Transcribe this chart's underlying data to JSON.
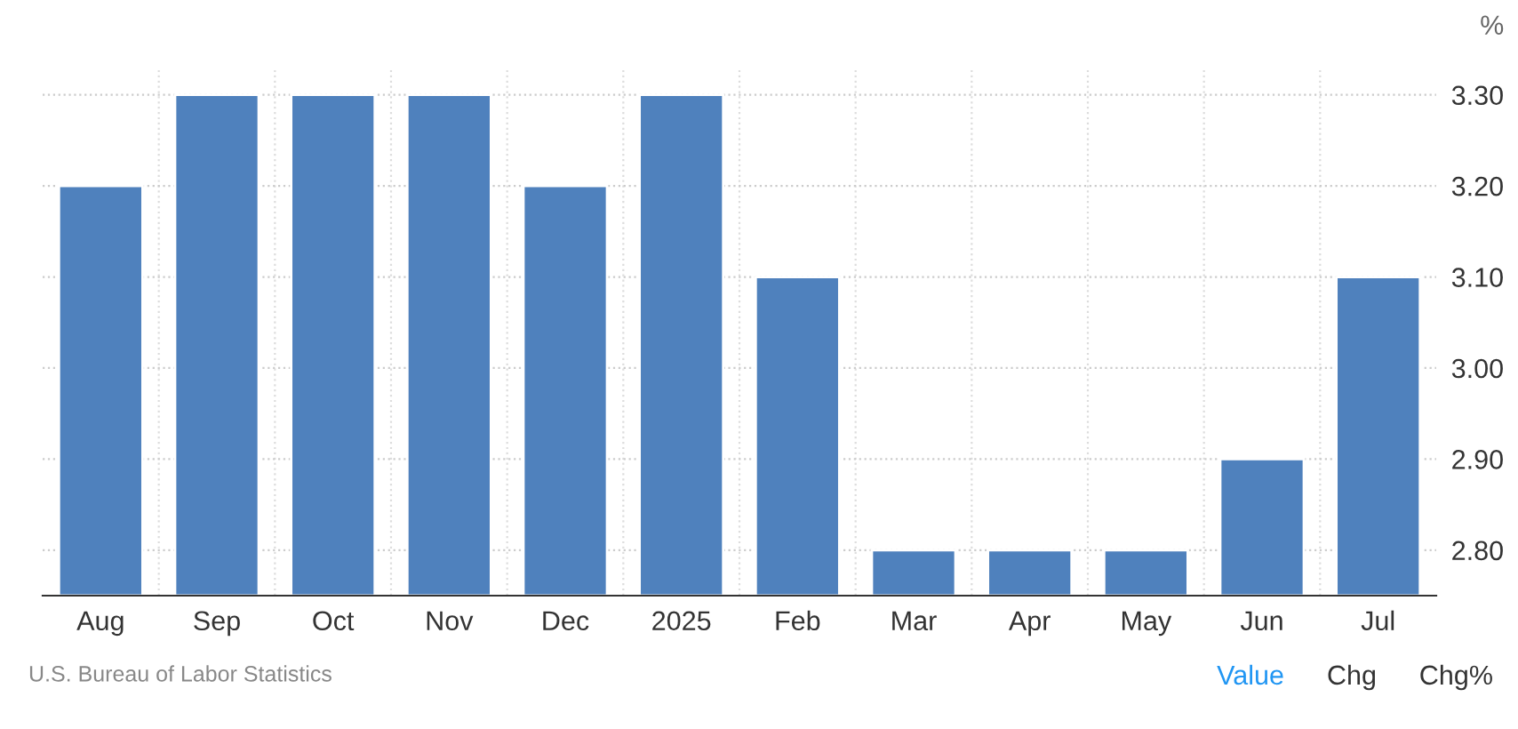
{
  "chart_data": {
    "type": "bar",
    "categories": [
      "Aug",
      "Sep",
      "Oct",
      "Nov",
      "Dec",
      "2025",
      "Feb",
      "Mar",
      "Apr",
      "May",
      "Jun",
      "Jul"
    ],
    "values": [
      3.2,
      3.3,
      3.3,
      3.3,
      3.2,
      3.3,
      3.1,
      2.8,
      2.8,
      2.8,
      2.9,
      3.1
    ],
    "color": "#4f81bd",
    "ylabel": "%",
    "ylim": [
      2.75,
      3.33
    ],
    "yticks": [
      {
        "value": 2.8,
        "label": "2.80"
      },
      {
        "value": 2.9,
        "label": "2.90"
      },
      {
        "value": 3.0,
        "label": "3.00"
      },
      {
        "value": 3.1,
        "label": "3.10"
      },
      {
        "value": 3.2,
        "label": "3.20"
      },
      {
        "value": 3.3,
        "label": "3.30"
      }
    ],
    "grid": true,
    "annotations": [
      "U.S. Bureau of Labor Statistics",
      "Value",
      "Chg",
      "Chg%"
    ]
  }
}
